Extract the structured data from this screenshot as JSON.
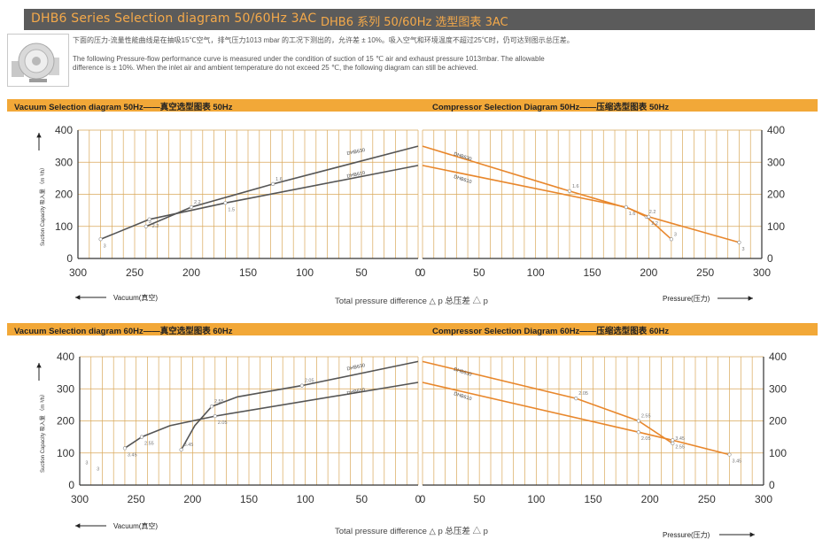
{
  "header": {
    "title_en": "DHB6 Series Selection diagram 50/60Hz 3AC",
    "title_cn": "DHB6 系列 50/60Hz 选型图表 3AC"
  },
  "notes": {
    "cn": "下面的压力-流量性能曲线是在抽吸15℃空气，排气压力1013 mbar 的工况下测出的，允许差 ± 10%。吸入空气和环境温度不超过25℃时，仍可达到图示总压差。",
    "en1": "The following Pressure-flow performance curve is measured under the condition of suction of 15 ℃ air and exhaust pressure 1013mbar. The allowable",
    "en2": "difference is ± 10%. When the inlet air and ambient temperature do not exceed 25 ℃, the following diagram can still be achieved."
  },
  "labels": {
    "y_axis": "Suction Capacity 吸入量 （m ³/h）",
    "total_pressure": "Total pressure difference    △ p 总压差  △ p",
    "vacuum": "Vacuum(真空)",
    "pressure": "Pressure(压力)"
  },
  "colors": {
    "band": "#f2a838",
    "vacuum_curve": "#555555",
    "pressure_curve": "#e8872c",
    "grid": "#d9a85a"
  },
  "panels": [
    {
      "title": "Vacuum Selection diagram 50Hz——真空选型图表 50Hz"
    },
    {
      "title": "Compressor Selection Diagram 50Hz——压缩选型图表 50Hz"
    },
    {
      "title": "Vacuum Selection diagram 60Hz——真空选型图表 60Hz"
    },
    {
      "title": "Compressor Selection Diagram 60Hz——压缩选型图表 60Hz"
    }
  ],
  "chart_data": [
    {
      "type": "line",
      "title": "Vacuum Selection diagram 50Hz——真空选型图表 50Hz",
      "xlabel": "Total pressure difference △ p 总压差 △ p",
      "ylabel": "Suction Capacity 吸入量 （m ³/h）",
      "xlim": [
        300,
        0
      ],
      "ylim": [
        0,
        400
      ],
      "x_ticks": [
        300,
        250,
        200,
        150,
        100,
        50,
        0
      ],
      "y_ticks": [
        0,
        100,
        200,
        300,
        400
      ],
      "grid": true,
      "series": [
        {
          "name": "DHB630",
          "points": [
            [
              240,
              100
            ],
            [
              200,
              160
            ],
            [
              128,
              232
            ],
            [
              0,
              350
            ]
          ],
          "point_labels": [
            "3",
            "2.2",
            "1.6",
            ""
          ]
        },
        {
          "name": "DHB610",
          "points": [
            [
              280,
              60
            ],
            [
              237,
              122
            ],
            [
              170,
              173
            ],
            [
              0,
              290
            ]
          ],
          "point_labels": [
            "3",
            "2.2",
            "1.5",
            ""
          ]
        }
      ]
    },
    {
      "type": "line",
      "title": "Compressor Selection Diagram 50Hz——压缩选型图表 50Hz",
      "xlabel": "Total pressure difference △ p 总压差 △ p",
      "ylabel": "Suction Capacity 吸入量 （m ³/h）",
      "xlim": [
        0,
        300
      ],
      "ylim": [
        0,
        400
      ],
      "x_ticks": [
        0,
        50,
        100,
        150,
        200,
        250,
        300
      ],
      "y_ticks": [
        0,
        100,
        200,
        300,
        400
      ],
      "grid": true,
      "series": [
        {
          "name": "DHB630",
          "points": [
            [
              0,
              350
            ],
            [
              130,
              210
            ],
            [
              183,
              155
            ],
            [
              198,
              130
            ],
            [
              220,
              60
            ]
          ],
          "point_labels": [
            "",
            "1.6",
            "",
            "2.2",
            "3"
          ]
        },
        {
          "name": "DHB610",
          "points": [
            [
              0,
              290
            ],
            [
              180,
              160
            ],
            [
              200,
              130
            ],
            [
              280,
              50
            ]
          ],
          "point_labels": [
            "",
            "1.6",
            "2.2",
            "3"
          ]
        }
      ]
    },
    {
      "type": "line",
      "title": "Vacuum Selection diagram 60Hz——真空选型图表 60Hz",
      "xlabel": "Total pressure difference △ p 总压差 △ p",
      "ylabel": "Suction Capacity 吸入量 （m ³/h）",
      "xlim": [
        300,
        0
      ],
      "ylim": [
        0,
        400
      ],
      "x_ticks": [
        300,
        250,
        200,
        150,
        100,
        50,
        0
      ],
      "y_ticks": [
        0,
        100,
        200,
        300,
        400
      ],
      "grid": true,
      "series": [
        {
          "name": "DHB630",
          "points": [
            [
              210,
              110
            ],
            [
              198,
              185
            ],
            [
              183,
              245
            ],
            [
              160,
              275
            ],
            [
              103,
              310
            ],
            [
              0,
              385
            ]
          ],
          "point_labels": [
            "3.45",
            "",
            "2.55",
            "",
            "2.05",
            ""
          ]
        },
        {
          "name": "DHB610",
          "points": [
            [
              260,
              115
            ],
            [
              245,
              150
            ],
            [
              220,
              185
            ],
            [
              180,
              215
            ],
            [
              0,
              320
            ]
          ],
          "point_labels": [
            "3.45",
            "2.55",
            "",
            "2.05",
            ""
          ]
        }
      ],
      "annotations": [
        "3",
        "3"
      ]
    },
    {
      "type": "line",
      "title": "Compressor Selection Diagram 60Hz——压缩选型图表 60Hz",
      "xlabel": "Total pressure difference △ p 总压差 △ p",
      "ylabel": "Suction Capacity 吸入量 （m ³/h）",
      "xlim": [
        0,
        300
      ],
      "ylim": [
        0,
        400
      ],
      "x_ticks": [
        0,
        50,
        100,
        150,
        200,
        250,
        300
      ],
      "y_ticks": [
        0,
        100,
        200,
        300,
        400
      ],
      "grid": true,
      "series": [
        {
          "name": "DHB630",
          "points": [
            [
              0,
              385
            ],
            [
              135,
              270
            ],
            [
              190,
              200
            ],
            [
              220,
              130
            ]
          ],
          "point_labels": [
            "",
            "2.05",
            "2.55",
            "3.45"
          ]
        },
        {
          "name": "DHB610",
          "points": [
            [
              0,
              320
            ],
            [
              190,
              165
            ],
            [
              220,
              140
            ],
            [
              270,
              95
            ]
          ],
          "point_labels": [
            "",
            "2.05",
            "2.55",
            "3.45"
          ]
        }
      ]
    }
  ]
}
